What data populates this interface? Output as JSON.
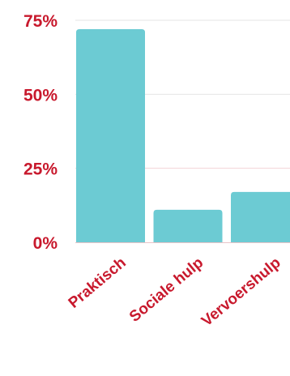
{
  "colors": {
    "bar": "#6ccbd3",
    "label": "#c8192d",
    "grid": "#e6e6e6",
    "grid_accent": "#f3d3d6",
    "axis": "#e9c4c8"
  },
  "chart_data": {
    "type": "bar",
    "title": "",
    "xlabel": "",
    "ylabel": "",
    "categories": [
      "Praktisch",
      "Sociale hulp",
      "Vervoershulp"
    ],
    "values": [
      72,
      11,
      17
    ],
    "ylim": [
      0,
      75
    ],
    "y_ticks": [
      {
        "value": 0,
        "label": "0%"
      },
      {
        "value": 25,
        "label": "25%"
      },
      {
        "value": 50,
        "label": "50%"
      },
      {
        "value": 75,
        "label": "75%"
      }
    ],
    "grid": true,
    "legend": "none"
  }
}
